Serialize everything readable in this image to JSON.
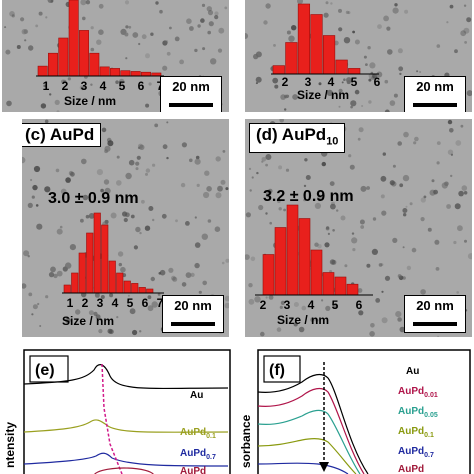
{
  "panels": {
    "a": {
      "histogram": {
        "ticks": [
          "1",
          "2",
          "3",
          "4",
          "5",
          "6",
          "7"
        ],
        "axis_label": "Size / nm",
        "values": [
          0.13,
          0.3,
          0.5,
          1.0,
          0.6,
          0.3,
          0.12,
          0.1,
          0.07,
          0.06,
          0.05,
          0.04
        ]
      },
      "scale": "20 nm"
    },
    "b": {
      "histogram": {
        "ticks": [
          "2",
          "3",
          "4",
          "5",
          "6"
        ],
        "axis_label": "Size / nm",
        "values": [
          0.12,
          0.45,
          1.0,
          0.85,
          0.55,
          0.2,
          0.08
        ]
      },
      "scale": "20 nm"
    },
    "c": {
      "label": "(c) AuPd",
      "mean": "3.0 ± 0.9 nm",
      "histogram": {
        "ticks": [
          "1",
          "2",
          "3",
          "4",
          "5",
          "6",
          "7"
        ],
        "axis_label": "Size / nm",
        "values": [
          0.1,
          0.25,
          0.5,
          0.75,
          1.0,
          0.85,
          0.4,
          0.25,
          0.15,
          0.12,
          0.07,
          0.05
        ]
      },
      "scale": "20 nm"
    },
    "d": {
      "label_main": "(d) AuPd",
      "label_sub": "10",
      "mean": "3.2 ± 0.9 nm",
      "histogram": {
        "ticks": [
          "2",
          "3",
          "4",
          "5",
          "6"
        ],
        "axis_label": "Size / nm",
        "values": [
          0.45,
          0.75,
          1.0,
          0.85,
          0.5,
          0.25,
          0.2,
          0.12
        ]
      },
      "scale": "20 nm"
    },
    "e": {
      "label": "(e)",
      "ylabel": "ntensity",
      "series": [
        {
          "main": "Au",
          "sub": "",
          "color": "#000000"
        },
        {
          "main": "AuPd",
          "sub": "0.1",
          "color": "#9aa020"
        },
        {
          "main": "AuPd",
          "sub": "0.7",
          "color": "#1f2aa0"
        },
        {
          "main": "AuPd",
          "sub": "",
          "color": "#a01a3a"
        }
      ]
    },
    "f": {
      "label": "(f)",
      "ylabel": "sorbance",
      "series": [
        {
          "main": "Au",
          "sub": "",
          "color": "#000000"
        },
        {
          "main": "AuPd",
          "sub": "0.01",
          "color": "#b0154a"
        },
        {
          "main": "AuPd",
          "sub": "0.05",
          "color": "#2aa090"
        },
        {
          "main": "AuPd",
          "sub": "0.1",
          "color": "#8a9a10"
        },
        {
          "main": "AuPd",
          "sub": "0.7",
          "color": "#1f2aa0"
        },
        {
          "main": "AuPd",
          "sub": "",
          "color": "#a01a3a"
        }
      ]
    }
  },
  "colors": {
    "bar": "#e8201c",
    "bar_edge": "#9a0d0a",
    "tem_background": "#a9a9a9"
  }
}
